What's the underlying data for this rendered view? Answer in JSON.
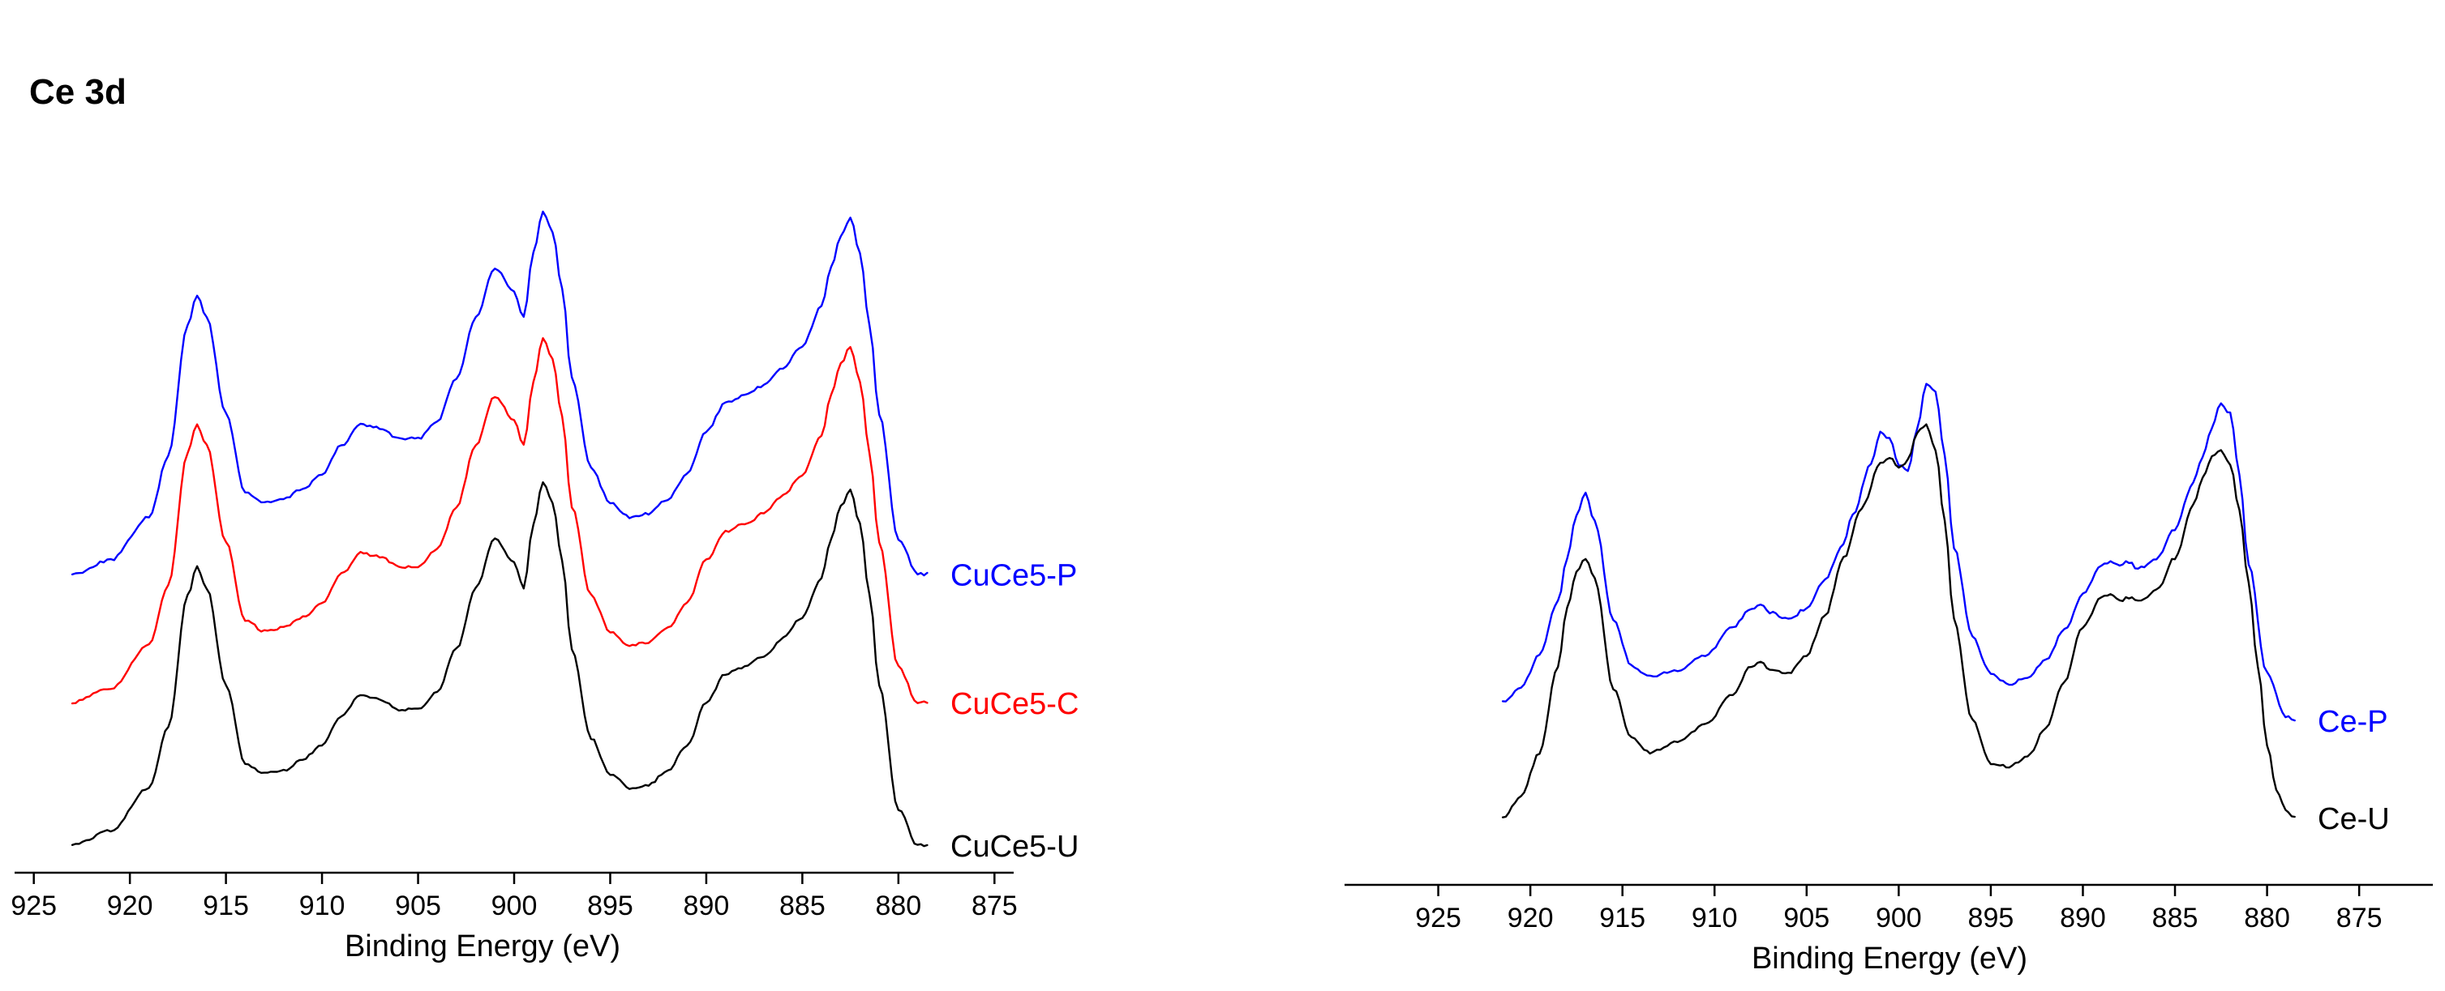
{
  "chart_data": [
    {
      "type": "line",
      "panel": "left",
      "title": "Ce 3d",
      "xlabel": "Binding Energy (eV)",
      "ylabel": "",
      "xlim": [
        926,
        874
      ],
      "x_reversed": true,
      "grid": false,
      "xticks": [
        "925",
        "920",
        "915",
        "910",
        "905",
        "900",
        "895",
        "890",
        "885",
        "880",
        "875"
      ],
      "series": [
        {
          "name": "CuCe5-P",
          "color": "#0000ff",
          "offset": 0.76,
          "x": [
            923,
            921,
            919,
            918,
            917,
            916.5,
            916,
            915,
            914,
            913,
            912,
            911,
            910,
            909,
            908,
            907,
            906,
            905,
            904,
            903,
            902,
            901,
            900,
            899.5,
            899,
            898.5,
            898,
            897.5,
            897,
            896,
            895,
            894,
            893,
            892,
            891,
            890,
            889,
            888,
            887,
            886,
            885,
            884,
            883.5,
            883,
            882.5,
            882,
            881.5,
            881,
            880,
            879,
            878.5
          ],
          "y": [
            0.0,
            0.04,
            0.16,
            0.33,
            0.7,
            0.78,
            0.72,
            0.45,
            0.23,
            0.2,
            0.21,
            0.24,
            0.28,
            0.36,
            0.42,
            0.41,
            0.38,
            0.38,
            0.43,
            0.55,
            0.72,
            0.86,
            0.79,
            0.72,
            0.9,
            1.02,
            0.96,
            0.8,
            0.55,
            0.3,
            0.2,
            0.16,
            0.17,
            0.21,
            0.28,
            0.4,
            0.48,
            0.5,
            0.53,
            0.58,
            0.64,
            0.75,
            0.86,
            0.95,
            1.0,
            0.9,
            0.7,
            0.45,
            0.1,
            0.0,
            0.0
          ]
        },
        {
          "name": "CuCe5-C",
          "color": "#ff0000",
          "offset": 0.4,
          "x": [
            923,
            921,
            919,
            918,
            917,
            916.5,
            916,
            915,
            914,
            913,
            912,
            911,
            910,
            909,
            908,
            907,
            906,
            905,
            904,
            903,
            902,
            901,
            900,
            899.5,
            899,
            898.5,
            898,
            897.5,
            897,
            896,
            895,
            894,
            893,
            892,
            891,
            890,
            889,
            888,
            887,
            886,
            885,
            884,
            883.5,
            883,
            882.5,
            882,
            881.5,
            881,
            880,
            879,
            878.5
          ],
          "y": [
            0.0,
            0.04,
            0.16,
            0.33,
            0.7,
            0.78,
            0.72,
            0.45,
            0.23,
            0.2,
            0.21,
            0.24,
            0.28,
            0.36,
            0.42,
            0.41,
            0.38,
            0.38,
            0.43,
            0.55,
            0.72,
            0.86,
            0.79,
            0.72,
            0.9,
            1.02,
            0.96,
            0.8,
            0.55,
            0.3,
            0.2,
            0.16,
            0.17,
            0.21,
            0.28,
            0.4,
            0.48,
            0.5,
            0.53,
            0.58,
            0.64,
            0.75,
            0.86,
            0.95,
            1.0,
            0.9,
            0.7,
            0.45,
            0.1,
            0.0,
            0.0
          ]
        },
        {
          "name": "CuCe5-U",
          "color": "#000000",
          "offset": 0.0,
          "x": [
            923,
            921,
            919,
            918,
            917,
            916.5,
            916,
            915,
            914,
            913,
            912,
            911,
            910,
            909,
            908,
            907,
            906,
            905,
            904,
            903,
            902,
            901,
            900,
            899.5,
            899,
            898.5,
            898,
            897.5,
            897,
            896,
            895,
            894,
            893,
            892,
            891,
            890,
            889,
            888,
            887,
            886,
            885,
            884,
            883.5,
            883,
            882.5,
            882,
            881.5,
            881,
            880,
            879,
            878.5
          ],
          "y": [
            0.0,
            0.04,
            0.16,
            0.33,
            0.7,
            0.78,
            0.72,
            0.45,
            0.23,
            0.2,
            0.21,
            0.24,
            0.28,
            0.36,
            0.42,
            0.41,
            0.38,
            0.38,
            0.43,
            0.55,
            0.72,
            0.86,
            0.79,
            0.72,
            0.9,
            1.02,
            0.96,
            0.8,
            0.55,
            0.3,
            0.2,
            0.16,
            0.17,
            0.21,
            0.28,
            0.4,
            0.48,
            0.5,
            0.53,
            0.58,
            0.64,
            0.75,
            0.86,
            0.95,
            1.0,
            0.9,
            0.7,
            0.45,
            0.1,
            0.0,
            0.0
          ]
        }
      ]
    },
    {
      "type": "line",
      "panel": "right",
      "title": "",
      "xlabel": "Binding Energy (eV)",
      "ylabel": "",
      "xlim": [
        930,
        871
      ],
      "x_reversed": true,
      "grid": false,
      "xticks": [
        "925",
        "920",
        "915",
        "910",
        "905",
        "900",
        "895",
        "890",
        "885",
        "880",
        "875"
      ],
      "series": [
        {
          "name": "Ce-P",
          "color": "#0000ff",
          "x": [
            921.5,
            920.5,
            919.5,
            918.5,
            918,
            917.5,
            917,
            916.5,
            915.5,
            914.5,
            913.5,
            912,
            910.5,
            909,
            908,
            907.5,
            907,
            906,
            905,
            904,
            903,
            902.5,
            901.5,
            901,
            900.5,
            900,
            899.5,
            899,
            898.5,
            898,
            897.5,
            897,
            896,
            895,
            894,
            893,
            892,
            891,
            890,
            889,
            888.5,
            888,
            887.5,
            887,
            886.5,
            886,
            885,
            884,
            883.5,
            883,
            882.5,
            882,
            881.5,
            881,
            880,
            879,
            878.5
          ],
          "y": [
            0.32,
            0.36,
            0.45,
            0.6,
            0.72,
            0.84,
            0.9,
            0.82,
            0.55,
            0.42,
            0.39,
            0.41,
            0.45,
            0.53,
            0.58,
            0.59,
            0.57,
            0.55,
            0.58,
            0.66,
            0.76,
            0.84,
            0.98,
            1.07,
            1.05,
            0.98,
            0.96,
            1.08,
            1.2,
            1.18,
            1.0,
            0.75,
            0.5,
            0.4,
            0.37,
            0.39,
            0.44,
            0.52,
            0.62,
            0.7,
            0.71,
            0.7,
            0.71,
            0.69,
            0.7,
            0.72,
            0.8,
            0.93,
            1.0,
            1.08,
            1.15,
            1.12,
            0.95,
            0.7,
            0.4,
            0.28,
            0.27
          ]
        },
        {
          "name": "Ce-U",
          "color": "#000000",
          "x": [
            921.5,
            920.5,
            919.5,
            918.5,
            918,
            917.5,
            917,
            916.5,
            915.5,
            914.5,
            913.5,
            912,
            910.5,
            909,
            908,
            907.5,
            907,
            906,
            905,
            904,
            903,
            902,
            901,
            900.5,
            900,
            899.5,
            899,
            898.5,
            898,
            897.5,
            897,
            896,
            895,
            894,
            893,
            892,
            891,
            890,
            889,
            888.5,
            888,
            887.5,
            887,
            886,
            885,
            884,
            883.5,
            883,
            882.5,
            882,
            881.5,
            881,
            880.5,
            880,
            879.5,
            879,
            878.5
          ],
          "y": [
            0.0,
            0.06,
            0.18,
            0.42,
            0.58,
            0.68,
            0.72,
            0.66,
            0.36,
            0.22,
            0.18,
            0.21,
            0.26,
            0.34,
            0.42,
            0.43,
            0.41,
            0.4,
            0.45,
            0.56,
            0.72,
            0.86,
            0.98,
            1.0,
            0.97,
            0.99,
            1.07,
            1.09,
            1.02,
            0.82,
            0.55,
            0.27,
            0.15,
            0.14,
            0.17,
            0.25,
            0.38,
            0.53,
            0.61,
            0.62,
            0.6,
            0.61,
            0.6,
            0.63,
            0.72,
            0.87,
            0.94,
            1.0,
            1.02,
            0.98,
            0.85,
            0.65,
            0.42,
            0.2,
            0.08,
            0.02,
            0.0
          ]
        }
      ]
    }
  ]
}
